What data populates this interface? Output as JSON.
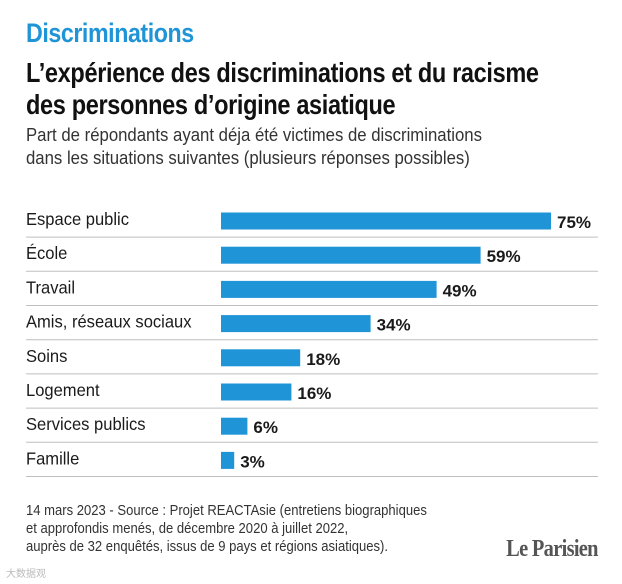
{
  "header": {
    "kicker": "Discriminations",
    "title_line1": "L’expérience des discriminations et du racisme",
    "title_line2": "des personnes d’origine asiatique",
    "subtitle_line1": "Part de répondants ayant déja été victimes de discriminations",
    "subtitle_line2": "dans les situations suivantes (plusieurs réponses possibles)"
  },
  "colors": {
    "kicker": "#1f95d8",
    "bar": "#1f95d8",
    "text": "#1a1a1a",
    "divider": "#bfbfbf"
  },
  "chart_data": {
    "type": "bar",
    "orientation": "horizontal",
    "categories": [
      "Espace public",
      "École",
      "Travail",
      "Amis, réseaux sociaux",
      "Soins",
      "Logement",
      "Services publics",
      "Famille"
    ],
    "values": [
      75,
      59,
      49,
      34,
      18,
      16,
      6,
      3
    ],
    "value_labels": [
      "75%",
      "59%",
      "49%",
      "34%",
      "18%",
      "16%",
      "6%",
      "3%"
    ],
    "unit": "%",
    "xlim": [
      0,
      75
    ],
    "title": "",
    "xlabel": "",
    "ylabel": "",
    "grid": false,
    "legend": "none"
  },
  "footer": {
    "line1": "14 mars 2023 - Source : Projet REACTAsie (entretiens biographiques",
    "line2": "et approfondis menés, de décembre 2020 à juillet 2022,",
    "line3": "auprès de 32 enquêtés, issus de 9 pays et régions asiatiques).",
    "logo": "Le Parisien"
  },
  "watermark": "大数据观"
}
